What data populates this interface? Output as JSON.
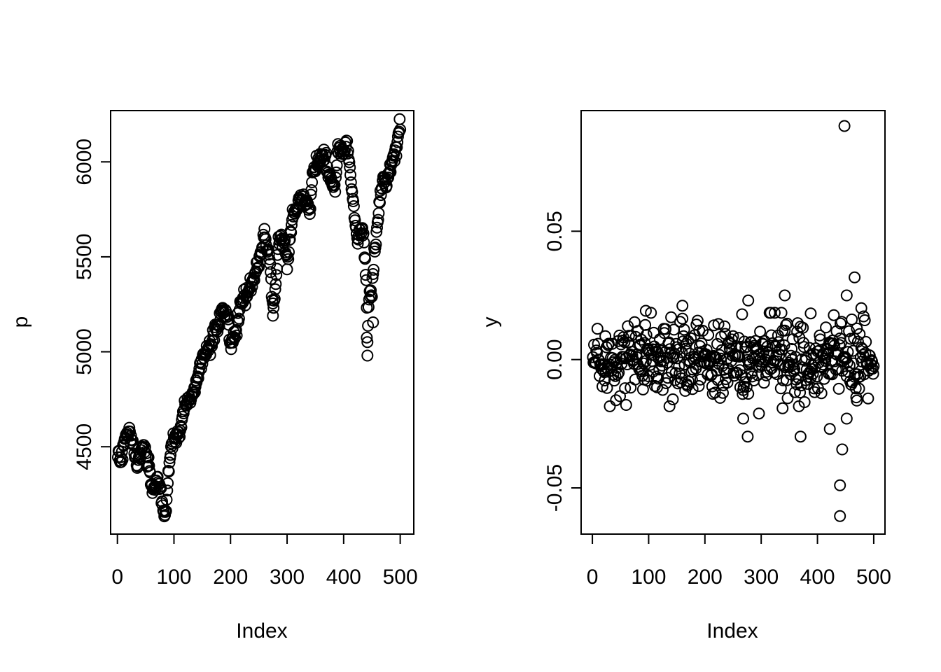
{
  "chart_data": [
    {
      "type": "scatter",
      "title": "",
      "xlabel": "Index",
      "ylabel": "p",
      "xlim": [
        -12,
        524
      ],
      "ylim": [
        4040,
        6270
      ],
      "x_ticks": [
        0,
        100,
        200,
        300,
        400,
        500
      ],
      "x_tick_labels": [
        "0",
        "100",
        "200",
        "300",
        "400",
        "500"
      ],
      "y_ticks": [
        4500,
        5000,
        5500,
        6000
      ],
      "y_tick_labels": [
        "4500",
        "5000",
        "5500",
        "6000"
      ],
      "grid": false,
      "legend": "none",
      "marker": "open-circle",
      "anchors": [
        [
          1,
          4460
        ],
        [
          5,
          4415
        ],
        [
          10,
          4480
        ],
        [
          15,
          4555
        ],
        [
          20,
          4580
        ],
        [
          25,
          4525
        ],
        [
          30,
          4470
        ],
        [
          35,
          4385
        ],
        [
          40,
          4440
        ],
        [
          45,
          4505
        ],
        [
          50,
          4465
        ],
        [
          55,
          4420
        ],
        [
          60,
          4290
        ],
        [
          65,
          4260
        ],
        [
          70,
          4340
        ],
        [
          75,
          4290
        ],
        [
          80,
          4180
        ],
        [
          85,
          4140
        ],
        [
          90,
          4360
        ],
        [
          95,
          4490
        ],
        [
          100,
          4540
        ],
        [
          110,
          4570
        ],
        [
          120,
          4730
        ],
        [
          130,
          4760
        ],
        [
          140,
          4830
        ],
        [
          150,
          4960
        ],
        [
          160,
          5020
        ],
        [
          170,
          5090
        ],
        [
          180,
          5160
        ],
        [
          185,
          5230
        ],
        [
          195,
          5190
        ],
        [
          200,
          5020
        ],
        [
          205,
          5060
        ],
        [
          210,
          5120
        ],
        [
          220,
          5260
        ],
        [
          230,
          5290
        ],
        [
          240,
          5380
        ],
        [
          250,
          5480
        ],
        [
          260,
          5610
        ],
        [
          270,
          5470
        ],
        [
          275,
          5220
        ],
        [
          280,
          5340
        ],
        [
          285,
          5590
        ],
        [
          295,
          5590
        ],
        [
          300,
          5460
        ],
        [
          305,
          5590
        ],
        [
          310,
          5720
        ],
        [
          320,
          5780
        ],
        [
          330,
          5820
        ],
        [
          340,
          5750
        ],
        [
          345,
          5930
        ],
        [
          355,
          6010
        ],
        [
          365,
          6060
        ],
        [
          375,
          5920
        ],
        [
          385,
          5860
        ],
        [
          390,
          6060
        ],
        [
          395,
          6080
        ],
        [
          400,
          6040
        ],
        [
          405,
          6110
        ],
        [
          410,
          5990
        ],
        [
          415,
          5840
        ],
        [
          420,
          5700
        ],
        [
          425,
          5570
        ],
        [
          430,
          5650
        ],
        [
          435,
          5620
        ],
        [
          440,
          5380
        ],
        [
          442,
          5060
        ],
        [
          445,
          5290
        ],
        [
          450,
          5330
        ],
        [
          455,
          5540
        ],
        [
          460,
          5660
        ],
        [
          465,
          5840
        ],
        [
          470,
          5930
        ],
        [
          475,
          5860
        ],
        [
          480,
          5950
        ],
        [
          485,
          6010
        ],
        [
          490,
          6030
        ],
        [
          495,
          6120
        ],
        [
          499,
          6180
        ]
      ],
      "outliers": [
        [
          442,
          4980
        ],
        [
          452,
          5155
        ],
        [
          441,
          5075
        ],
        [
          275,
          5190
        ]
      ]
    },
    {
      "type": "scatter",
      "title": "",
      "xlabel": "Index",
      "ylabel": "y",
      "xlim": [
        -20,
        520
      ],
      "ylim": [
        -0.068,
        0.097
      ],
      "x_ticks": [
        0,
        100,
        200,
        300,
        400,
        500
      ],
      "x_tick_labels": [
        "0",
        "100",
        "200",
        "300",
        "400",
        "500"
      ],
      "y_ticks": [
        -0.05,
        0.0,
        0.05
      ],
      "y_tick_labels": [
        "-0.05",
        "0.00",
        "0.05"
      ],
      "grid": false,
      "legend": "none",
      "marker": "open-circle",
      "noise_sd": 0.007,
      "outliers": [
        [
          448,
          0.091
        ],
        [
          466,
          0.032
        ],
        [
          342,
          0.025
        ],
        [
          452,
          0.025
        ],
        [
          277,
          0.023
        ],
        [
          160,
          0.021
        ],
        [
          478,
          0.02
        ],
        [
          95,
          0.019
        ],
        [
          388,
          0.018
        ],
        [
          470,
          -0.016
        ],
        [
          276,
          -0.03
        ],
        [
          370,
          -0.03
        ],
        [
          422,
          -0.027
        ],
        [
          444,
          -0.035
        ],
        [
          440,
          -0.049
        ],
        [
          440,
          -0.061
        ],
        [
          268,
          -0.023
        ],
        [
          296,
          -0.021
        ],
        [
          452,
          -0.023
        ],
        [
          338,
          -0.019
        ]
      ]
    }
  ]
}
